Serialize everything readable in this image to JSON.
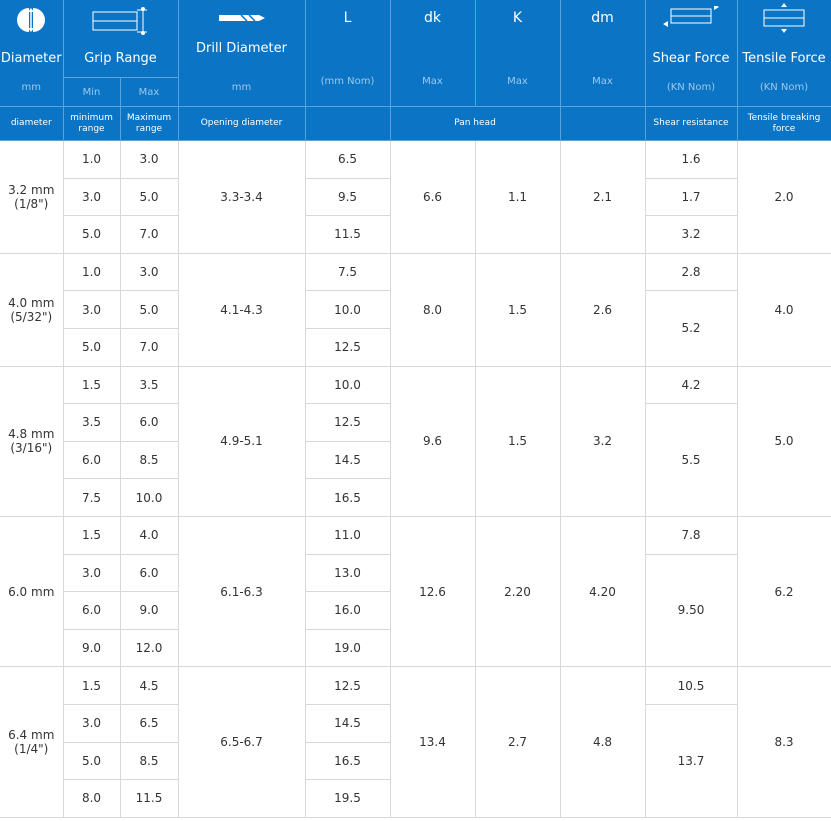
{
  "colors": {
    "header_bg": "#0b74c4",
    "header_sub": "#9cc8ee",
    "border": "#d8d8d8",
    "text": "#333333"
  },
  "header": {
    "diameter": {
      "title": "Diameter",
      "unit": "mm",
      "desc": "diameter",
      "icon": "rivet-diameter-icon"
    },
    "grip": {
      "title": "Grip Range",
      "min": "Min",
      "max": "Max",
      "desc_min": "minimum range",
      "desc_max": "Maximum range",
      "icon": "grip-range-icon"
    },
    "drill": {
      "title": "Drill Diameter",
      "unit": "mm",
      "desc": "Opening diameter",
      "icon": "drill-bit-icon"
    },
    "L": {
      "title": "L",
      "unit": "(mm Nom)",
      "desc": ""
    },
    "dk": {
      "title": "dk",
      "unit": "Max"
    },
    "K": {
      "title": "K",
      "unit": "Max"
    },
    "pan_head": "Pan head",
    "dm": {
      "title": "dm",
      "unit": "Max",
      "desc": ""
    },
    "shear": {
      "title": "Shear Force",
      "unit": "(KN Nom)",
      "desc": "Shear resistance",
      "icon": "shear-force-icon"
    },
    "tensile": {
      "title": "Tensile Force",
      "unit": "(KN Nom)",
      "desc": "Tensile breaking force",
      "icon": "tensile-force-icon"
    }
  },
  "groups": [
    {
      "diameter": "3.2 mm",
      "inch": "(1/8\")",
      "drill": "3.3-3.4",
      "dk": "6.6",
      "K": "1.1",
      "dm": "2.1",
      "tensile": "2.0",
      "rows": [
        [
          "1.0",
          "3.0",
          "6.5"
        ],
        [
          "3.0",
          "5.0",
          "9.5"
        ],
        [
          "5.0",
          "7.0",
          "11.5"
        ]
      ],
      "shear": [
        {
          "v": "1.6",
          "span": 1
        },
        {
          "v": "1.7",
          "span": 1
        },
        {
          "v": "3.2",
          "span": 1
        }
      ]
    },
    {
      "diameter": "4.0 mm",
      "inch": "(5/32\")",
      "drill": "4.1-4.3",
      "dk": "8.0",
      "K": "1.5",
      "dm": "2.6",
      "tensile": "4.0",
      "rows": [
        [
          "1.0",
          "3.0",
          "7.5"
        ],
        [
          "3.0",
          "5.0",
          "10.0"
        ],
        [
          "5.0",
          "7.0",
          "12.5"
        ]
      ],
      "shear": [
        {
          "v": "2.8",
          "span": 1
        },
        {
          "v": "5.2",
          "span": 2
        }
      ]
    },
    {
      "diameter": "4.8 mm",
      "inch": "(3/16\")",
      "drill": "4.9-5.1",
      "dk": "9.6",
      "K": "1.5",
      "dm": "3.2",
      "tensile": "5.0",
      "rows": [
        [
          "1.5",
          "3.5",
          "10.0"
        ],
        [
          "3.5",
          "6.0",
          "12.5"
        ],
        [
          "6.0",
          "8.5",
          "14.5"
        ],
        [
          "7.5",
          "10.0",
          "16.5"
        ]
      ],
      "shear": [
        {
          "v": "4.2",
          "span": 1
        },
        {
          "v": "5.5",
          "span": 3
        }
      ]
    },
    {
      "diameter": "6.0 mm",
      "inch": "",
      "drill": "6.1-6.3",
      "dk": "12.6",
      "K": "2.20",
      "dm": "4.20",
      "tensile": "6.2",
      "rows": [
        [
          "1.5",
          "4.0",
          "11.0"
        ],
        [
          "3.0",
          "6.0",
          "13.0"
        ],
        [
          "6.0",
          "9.0",
          "16.0"
        ],
        [
          "9.0",
          "12.0",
          "19.0"
        ]
      ],
      "shear": [
        {
          "v": "7.8",
          "span": 1
        },
        {
          "v": "9.50",
          "span": 3
        }
      ]
    },
    {
      "diameter": "6.4 mm",
      "inch": "(1/4\")",
      "drill": "6.5-6.7",
      "dk": "13.4",
      "K": "2.7",
      "dm": "4.8",
      "tensile": "8.3",
      "rows": [
        [
          "1.5",
          "4.5",
          "12.5"
        ],
        [
          "3.0",
          "6.5",
          "14.5"
        ],
        [
          "5.0",
          "8.5",
          "16.5"
        ],
        [
          "8.0",
          "11.5",
          "19.5"
        ]
      ],
      "shear": [
        {
          "v": "10.5",
          "span": 1
        },
        {
          "v": "13.7",
          "span": 3
        }
      ]
    }
  ]
}
